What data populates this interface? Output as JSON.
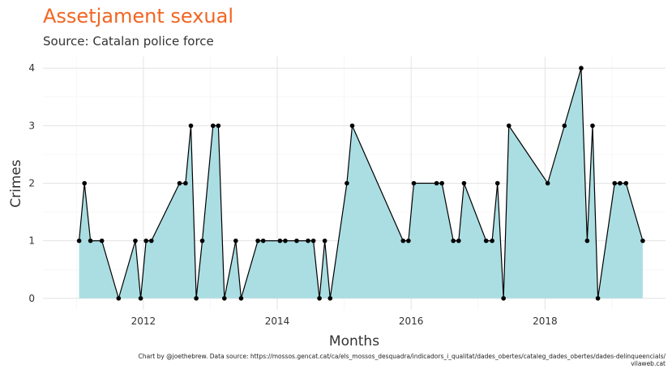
{
  "chart_data": {
    "type": "area",
    "title": "Assetjament sexual",
    "subtitle": "Source: Catalan police force",
    "xlabel": "Months",
    "ylabel": "Crimes",
    "caption_line1": "Chart by @joethebrew. Data source: https://mossos.gencat.cat/ca/els_mossos_desquadra/indicadors_i_qualitat/dades_obertes/cataleg_dades_obertes/dades-delinqueencials/",
    "caption_line2": "vilaweb.cat",
    "x_ticks": [
      2012,
      2014,
      2016,
      2018
    ],
    "y_ticks": [
      0,
      1,
      2,
      3,
      4
    ],
    "xlim": [
      2010.5,
      2019.8
    ],
    "ylim": [
      -0.2,
      4.2
    ],
    "grid": true,
    "fill_color": "#abdee3",
    "line_color": "#000000",
    "title_color": "#f26522",
    "points": [
      {
        "x": 2011.04,
        "y": 1
      },
      {
        "x": 2011.12,
        "y": 2
      },
      {
        "x": 2011.21,
        "y": 1
      },
      {
        "x": 2011.38,
        "y": 1
      },
      {
        "x": 2011.63,
        "y": 0
      },
      {
        "x": 2011.88,
        "y": 1
      },
      {
        "x": 2011.96,
        "y": 0
      },
      {
        "x": 2012.04,
        "y": 1
      },
      {
        "x": 2012.12,
        "y": 1
      },
      {
        "x": 2012.54,
        "y": 2
      },
      {
        "x": 2012.63,
        "y": 2
      },
      {
        "x": 2012.71,
        "y": 3
      },
      {
        "x": 2012.79,
        "y": 0
      },
      {
        "x": 2012.88,
        "y": 1
      },
      {
        "x": 2013.04,
        "y": 3
      },
      {
        "x": 2013.12,
        "y": 3
      },
      {
        "x": 2013.21,
        "y": 0
      },
      {
        "x": 2013.38,
        "y": 1
      },
      {
        "x": 2013.46,
        "y": 0
      },
      {
        "x": 2013.71,
        "y": 1
      },
      {
        "x": 2013.79,
        "y": 1
      },
      {
        "x": 2014.04,
        "y": 1
      },
      {
        "x": 2014.12,
        "y": 1
      },
      {
        "x": 2014.29,
        "y": 1
      },
      {
        "x": 2014.46,
        "y": 1
      },
      {
        "x": 2014.54,
        "y": 1
      },
      {
        "x": 2014.63,
        "y": 0
      },
      {
        "x": 2014.71,
        "y": 1
      },
      {
        "x": 2014.79,
        "y": 0
      },
      {
        "x": 2015.04,
        "y": 2
      },
      {
        "x": 2015.12,
        "y": 3
      },
      {
        "x": 2015.88,
        "y": 1
      },
      {
        "x": 2015.96,
        "y": 1
      },
      {
        "x": 2016.04,
        "y": 2
      },
      {
        "x": 2016.38,
        "y": 2
      },
      {
        "x": 2016.46,
        "y": 2
      },
      {
        "x": 2016.63,
        "y": 1
      },
      {
        "x": 2016.71,
        "y": 1
      },
      {
        "x": 2016.79,
        "y": 2
      },
      {
        "x": 2017.12,
        "y": 1
      },
      {
        "x": 2017.21,
        "y": 1
      },
      {
        "x": 2017.29,
        "y": 2
      },
      {
        "x": 2017.38,
        "y": 0
      },
      {
        "x": 2017.46,
        "y": 3
      },
      {
        "x": 2018.04,
        "y": 2
      },
      {
        "x": 2018.29,
        "y": 3
      },
      {
        "x": 2018.54,
        "y": 4
      },
      {
        "x": 2018.63,
        "y": 1
      },
      {
        "x": 2018.71,
        "y": 3
      },
      {
        "x": 2018.79,
        "y": 0
      },
      {
        "x": 2019.04,
        "y": 2
      },
      {
        "x": 2019.12,
        "y": 2
      },
      {
        "x": 2019.21,
        "y": 2
      },
      {
        "x": 2019.46,
        "y": 1
      }
    ]
  }
}
